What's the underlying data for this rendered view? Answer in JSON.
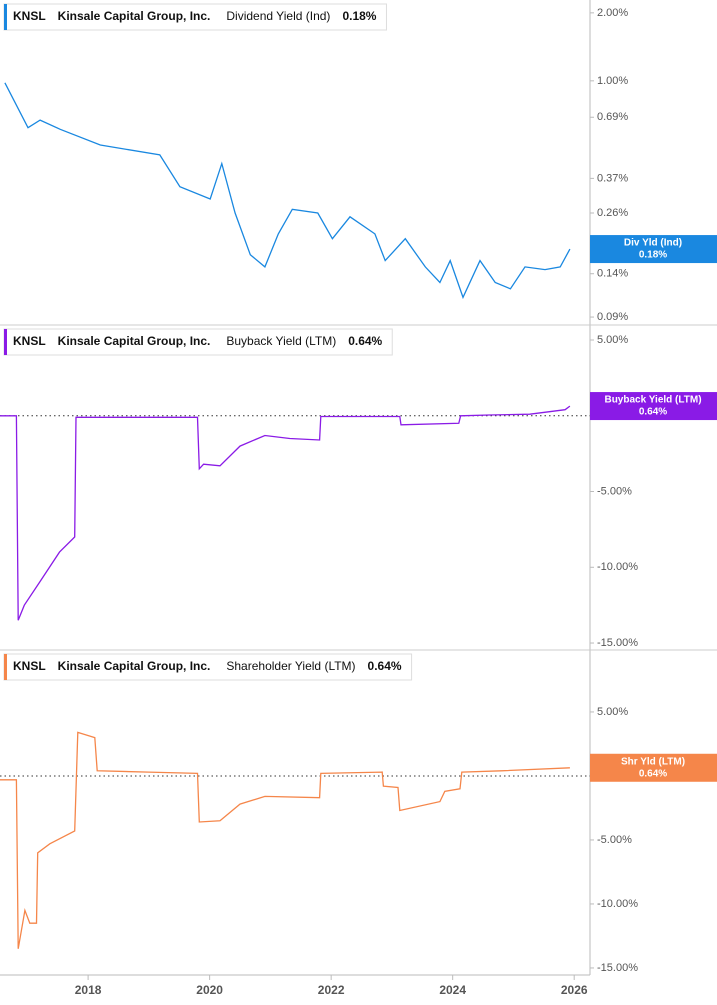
{
  "chart_data": [
    {
      "type": "line",
      "log_scale": true,
      "header": {
        "ticker": "KNSL",
        "company": "Kinsale Capital Group, Inc.",
        "value": "0.18%"
      },
      "badge": {
        "title": "Div Yld (Ind)",
        "value": "0.18%"
      },
      "series": [
        {
          "name": "Dividend Yield (Ind)",
          "color": "#1a88e0",
          "x": [
            2016.63,
            2017.01,
            2017.21,
            2017.54,
            2018.2,
            2019.18,
            2019.51,
            2020.01,
            2020.2,
            2020.42,
            2020.67,
            2020.91,
            2021.13,
            2021.36,
            2021.78,
            2022.02,
            2022.31,
            2022.72,
            2022.89,
            2023.22,
            2023.55,
            2023.79,
            2023.96,
            2024.17,
            2024.45,
            2024.7,
            2024.95,
            2025.19,
            2025.52,
            2025.77,
            2025.93
          ],
          "values": [
            0.98,
            0.62,
            0.67,
            0.61,
            0.52,
            0.47,
            0.34,
            0.3,
            0.43,
            0.26,
            0.17,
            0.15,
            0.21,
            0.27,
            0.26,
            0.2,
            0.25,
            0.21,
            0.16,
            0.2,
            0.15,
            0.128,
            0.16,
            0.11,
            0.16,
            0.128,
            0.12,
            0.15,
            0.146,
            0.15,
            0.18
          ]
        }
      ],
      "xlim": [
        2016.55,
        2026.26
      ],
      "ylim": [
        0.083,
        2.28
      ],
      "yticks": [
        {
          "value": 2,
          "label": "2.00%"
        },
        {
          "value": 1,
          "label": "1.00%"
        },
        {
          "value": 0.69,
          "label": "0.69%"
        },
        {
          "value": 0.37,
          "label": "0.37%"
        },
        {
          "value": 0.26,
          "label": "0.26%"
        },
        {
          "value": 0.14,
          "label": "0.14%"
        },
        {
          "value": 0.09,
          "label": "0.09%"
        }
      ],
      "zero_line": false
    },
    {
      "type": "line",
      "log_scale": false,
      "header": {
        "ticker": "KNSL",
        "company": "Kinsale Capital Group, Inc.",
        "value": "0.64%"
      },
      "badge": {
        "title": "Buyback Yield (LTM)",
        "value": "0.64%"
      },
      "series": [
        {
          "name": "Buyback Yield (LTM)",
          "color": "#8a1be6",
          "x": [
            2016.55,
            2016.82,
            2016.85,
            2016.95,
            2017.2,
            2017.53,
            2017.78,
            2017.8,
            2018.5,
            2019.8,
            2019.83,
            2019.9,
            2020.17,
            2020.5,
            2020.91,
            2021.32,
            2021.81,
            2021.83,
            2022.5,
            2023.13,
            2023.15,
            2024.1,
            2024.13,
            2024.6,
            2025.27,
            2025.85,
            2025.93
          ],
          "values": [
            0,
            0,
            -13.5,
            -12.5,
            -11,
            -9,
            -8,
            -0.1,
            -0.1,
            -0.1,
            -3.5,
            -3.2,
            -3.3,
            -2,
            -1.3,
            -1.5,
            -1.6,
            -0.05,
            -0.05,
            -0.05,
            -0.6,
            -0.5,
            0,
            0.05,
            0.1,
            0.4,
            0.64
          ]
        }
      ],
      "xlim": [
        2016.55,
        2026.26
      ],
      "ylim": [
        -15.46,
        5.99
      ],
      "yticks": [
        {
          "value": 5,
          "label": "5.00%"
        },
        {
          "value": 0,
          "label": "0.00%"
        },
        {
          "value": -5,
          "label": "-5.00%"
        },
        {
          "value": -10,
          "label": "-10.00%"
        },
        {
          "value": -15,
          "label": "-15.00%"
        }
      ],
      "zero_line": true
    },
    {
      "type": "line",
      "log_scale": false,
      "header": {
        "ticker": "KNSL",
        "company": "Kinsale Capital Group, Inc.",
        "value": "0.64%"
      },
      "badge": {
        "title": "Shr Yld (LTM)",
        "value": "0.64%"
      },
      "series": [
        {
          "name": "Shareholder Yield (LTM)",
          "color": "#f5864a",
          "x": [
            2016.55,
            2016.82,
            2016.85,
            2016.96,
            2017.04,
            2017.15,
            2017.17,
            2017.37,
            2017.78,
            2017.83,
            2018.11,
            2018.15,
            2019.0,
            2019.8,
            2019.83,
            2020.17,
            2020.5,
            2020.91,
            2021.81,
            2021.83,
            2022.84,
            2022.86,
            2023.1,
            2023.13,
            2023.79,
            2023.87,
            2024.12,
            2024.15,
            2024.8,
            2025.93
          ],
          "values": [
            -0.3,
            -0.3,
            -13.5,
            -10.5,
            -11.5,
            -11.5,
            -6,
            -5.3,
            -4.3,
            3.4,
            3,
            0.4,
            0.3,
            0.2,
            -3.6,
            -3.5,
            -2.2,
            -1.6,
            -1.7,
            0.2,
            0.3,
            -0.8,
            -0.9,
            -2.7,
            -2,
            -1.2,
            -1,
            0.3,
            0.4,
            0.64
          ]
        }
      ],
      "xlim": [
        2016.55,
        2026.26
      ],
      "ylim": [
        -15.55,
        9.84
      ],
      "yticks": [
        {
          "value": 5,
          "label": "5.00%"
        },
        {
          "value": 0,
          "label": "0.00%"
        },
        {
          "value": -5,
          "label": "-5.00%"
        },
        {
          "value": -10,
          "label": "-10.00%"
        },
        {
          "value": -15,
          "label": "-15.00%"
        }
      ],
      "xticks": [
        2018,
        2020,
        2022,
        2024,
        2026
      ],
      "zero_line": true
    }
  ]
}
